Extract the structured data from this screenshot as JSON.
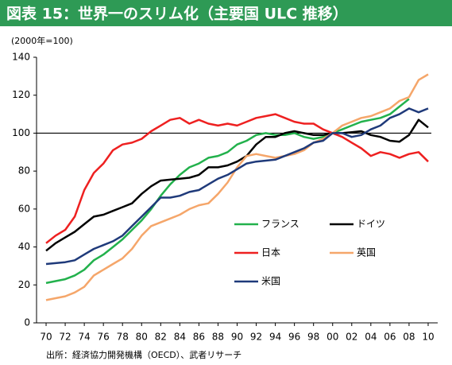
{
  "chart_data": {
    "type": "line",
    "title": "図表 15：世界一のスリム化（主要国 ULC 推移）",
    "unit_label": "(2000年=100)",
    "source": "出所：経済協力開発機構（OECD）、武者リサーチ",
    "x": [
      1970,
      1971,
      1972,
      1973,
      1974,
      1975,
      1976,
      1977,
      1978,
      1979,
      1980,
      1981,
      1982,
      1983,
      1984,
      1985,
      1986,
      1987,
      1988,
      1989,
      1990,
      1991,
      1992,
      1993,
      1994,
      1995,
      1996,
      1997,
      1998,
      1999,
      2000,
      2001,
      2002,
      2003,
      2004,
      2005,
      2006,
      2007,
      2008,
      2009,
      2010
    ],
    "xlim": [
      1969,
      2011
    ],
    "xticks": [
      {
        "value": 1970,
        "label": "70"
      },
      {
        "value": 1972,
        "label": "72"
      },
      {
        "value": 1974,
        "label": "74"
      },
      {
        "value": 1976,
        "label": "76"
      },
      {
        "value": 1978,
        "label": "78"
      },
      {
        "value": 1980,
        "label": "80"
      },
      {
        "value": 1982,
        "label": "82"
      },
      {
        "value": 1984,
        "label": "84"
      },
      {
        "value": 1986,
        "label": "86"
      },
      {
        "value": 1988,
        "label": "88"
      },
      {
        "value": 1990,
        "label": "90"
      },
      {
        "value": 1992,
        "label": "92"
      },
      {
        "value": 1994,
        "label": "94"
      },
      {
        "value": 1996,
        "label": "96"
      },
      {
        "value": 1998,
        "label": "98"
      },
      {
        "value": 2000,
        "label": "00"
      },
      {
        "value": 2002,
        "label": "02"
      },
      {
        "value": 2004,
        "label": "04"
      },
      {
        "value": 2006,
        "label": "06"
      },
      {
        "value": 2008,
        "label": "08"
      },
      {
        "value": 2010,
        "label": "10"
      }
    ],
    "ylim": [
      0,
      140
    ],
    "yticks": [
      0,
      20,
      40,
      60,
      80,
      100,
      120,
      140
    ],
    "reference_line": 100,
    "grid": false,
    "series": [
      {
        "name": "フランス",
        "color": "#22b14c",
        "values": [
          21,
          22,
          23,
          25,
          28,
          33,
          36,
          40,
          44,
          49,
          54,
          60,
          67,
          73,
          78,
          82,
          84,
          87,
          88,
          90,
          94,
          96,
          99,
          100,
          99,
          99,
          100,
          98,
          97,
          98,
          100,
          102,
          104,
          106,
          107,
          108,
          110,
          114,
          118,
          null,
          null
        ]
      },
      {
        "name": "ドイツ",
        "color": "#000000",
        "values": [
          38,
          42,
          45,
          48,
          52,
          56,
          57,
          59,
          61,
          63,
          68,
          72,
          75,
          75.5,
          76,
          76.5,
          78,
          82,
          82,
          83,
          85,
          88,
          94,
          98,
          98,
          100,
          101,
          100,
          99,
          99,
          100,
          100,
          100.5,
          101,
          99,
          98,
          96,
          95.5,
          99,
          107,
          103
        ]
      },
      {
        "name": "日本",
        "color": "#ee2020",
        "values": [
          42,
          46,
          49,
          56,
          70,
          79,
          84,
          91,
          94,
          95,
          97,
          101,
          104,
          107,
          108,
          105,
          107,
          105,
          104,
          105,
          104,
          106,
          108,
          109,
          110,
          108,
          106,
          105,
          105,
          102,
          100,
          98,
          95,
          92,
          88,
          90,
          89,
          87,
          89,
          90,
          85
        ]
      },
      {
        "name": "英国",
        "color": "#f5a66a",
        "values": [
          12,
          13,
          14,
          16,
          19,
          25,
          28,
          31,
          34,
          39,
          46,
          51,
          53,
          55,
          57,
          60,
          62,
          63,
          68,
          74,
          82,
          88,
          89,
          88,
          87,
          88,
          89,
          91,
          95,
          97,
          100,
          104,
          106,
          108,
          109,
          111,
          113,
          117,
          119,
          128,
          131
        ]
      },
      {
        "name": "米国",
        "color": "#1f3a7a",
        "values": [
          31,
          31.5,
          32,
          33,
          36,
          39,
          41,
          43,
          46,
          51,
          56,
          61,
          66,
          66,
          67,
          69,
          70,
          73,
          76,
          78,
          81,
          84,
          85,
          85.5,
          86,
          88,
          90,
          92,
          95,
          96,
          100,
          100,
          98,
          99,
          102,
          104,
          108,
          110,
          113,
          111,
          113
        ]
      }
    ]
  }
}
